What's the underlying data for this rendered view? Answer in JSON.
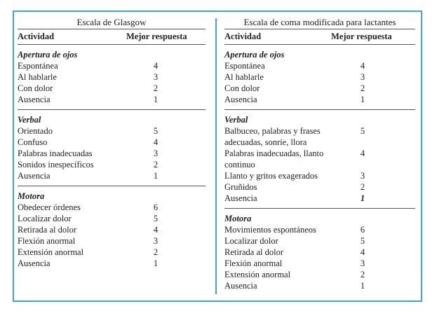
{
  "tables": [
    {
      "title": "Escala de Glasgow",
      "headers": [
        "Actividad",
        "Mejor respuesta"
      ],
      "sections": [
        {
          "title": "Apertura de ojos",
          "rows": [
            {
              "label": "Espontánea",
              "value": 4
            },
            {
              "label": "Al hablarle",
              "value": 3
            },
            {
              "label": "Con dolor",
              "value": 2
            },
            {
              "label": "Ausencia",
              "value": 1
            }
          ]
        },
        {
          "title": "Verbal",
          "rows": [
            {
              "label": "Orientado",
              "value": 5
            },
            {
              "label": "Confuso",
              "value": 4
            },
            {
              "label": "Palabras inadecuadas",
              "value": 3
            },
            {
              "label": "Sonidos inespecíficos",
              "value": 2
            },
            {
              "label": "Ausencia",
              "value": 1
            }
          ]
        },
        {
          "title": "Motora",
          "rows": [
            {
              "label": "Obedecer órdenes",
              "value": 6
            },
            {
              "label": "Localizar dolor",
              "value": 5
            },
            {
              "label": "Retirada al dolor",
              "value": 4
            },
            {
              "label": "Flexión anormal",
              "value": 3
            },
            {
              "label": "Extensión anormal",
              "value": 2
            },
            {
              "label": "Ausencia",
              "value": 1
            }
          ]
        }
      ]
    },
    {
      "title": "Escala de coma modificada para lactantes",
      "headers": [
        "Actividad",
        "Mejor respuesta"
      ],
      "sections": [
        {
          "title": "Apertura de ojos",
          "rows": [
            {
              "label": "Espontánea",
              "value": 4
            },
            {
              "label": "Al hablarle",
              "value": 3
            },
            {
              "label": "Con dolor",
              "value": 2
            },
            {
              "label": "Ausencia",
              "value": 1
            }
          ]
        },
        {
          "title": "Verbal",
          "rows": [
            {
              "label": "Balbuceo, palabras y frases adecuadas, sonríe, llora",
              "value": 5
            },
            {
              "label": "Palabras inadecuadas, llanto continuo",
              "value": 4
            },
            {
              "label": "Llanto y gritos exagerados",
              "value": 3
            },
            {
              "label": "Gruñidos",
              "value": 2
            },
            {
              "label": "Ausencia",
              "value": 1,
              "bold_italic": true
            }
          ]
        },
        {
          "title": "Motora",
          "rows": [
            {
              "label": "Movimientos espontáneos",
              "value": 6
            },
            {
              "label": "Localizar dolor",
              "value": 5
            },
            {
              "label": "Retirada al dolor",
              "value": 4
            },
            {
              "label": "Flexión anormal",
              "value": 3
            },
            {
              "label": "Extensión anormal",
              "value": 2
            },
            {
              "label": "Ausencia",
              "value": 1
            }
          ]
        }
      ]
    }
  ]
}
